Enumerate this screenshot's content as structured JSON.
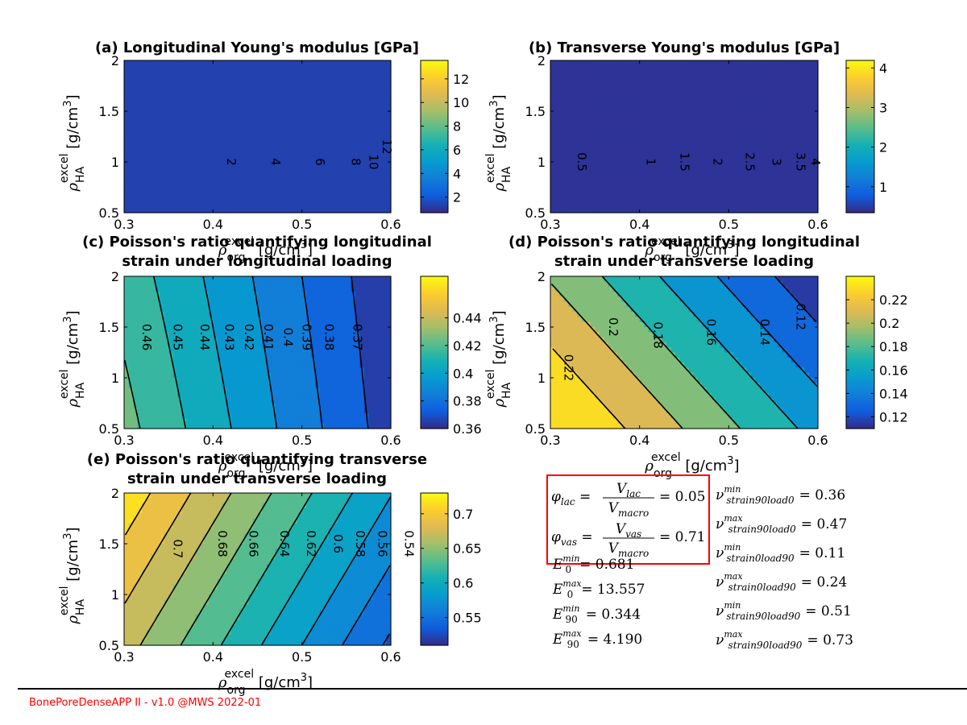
{
  "footer": {
    "text": "BonePoreDenseAPP II - v1.0 @MWS 2022-01"
  },
  "chart_data": [
    {
      "id": "a",
      "type": "heatmap",
      "title": "(a) Longitudinal Young's modulus [GPa]",
      "xlabel": "ρ_org^excel [g/cm^3]",
      "ylabel": "ρ_HA^excel [g/cm^3]",
      "xlim": [
        0.3,
        0.6
      ],
      "ylim": [
        0.5,
        2
      ],
      "xticks": [
        "0.3",
        "0.4",
        "0.5",
        "0.6"
      ],
      "yticks": [
        "0.5",
        "1",
        "1.5",
        "2"
      ],
      "field": {
        "base": 14.6,
        "cx": -42,
        "cy": -3.0,
        "cxy": 0.6
      },
      "clim": [
        0.681,
        13.557
      ],
      "cbar_ticks": [
        2,
        4,
        6,
        8,
        10,
        12
      ],
      "contour_levels": [
        2,
        4,
        6,
        8,
        10,
        12
      ],
      "level_labels": [
        [
          "2",
          0.42,
          1
        ],
        [
          "4",
          0.47,
          1
        ],
        [
          "6",
          0.52,
          1
        ],
        [
          "8",
          0.56,
          1
        ],
        [
          "10",
          0.58,
          1
        ],
        [
          "12",
          0.595,
          1.15
        ]
      ]
    },
    {
      "id": "b",
      "type": "heatmap",
      "title": "(b) Transverse Young's modulus [GPa]",
      "xlabel": "ρ_org^excel [g/cm^3]",
      "ylabel": "ρ_HA^excel [g/cm^3]",
      "xlim": [
        0.3,
        0.6
      ],
      "ylim": [
        0.5,
        2
      ],
      "xticks": [
        "0.3",
        "0.4",
        "0.5",
        "0.6"
      ],
      "yticks": [
        "0.5",
        "1",
        "1.5",
        "2"
      ],
      "field": {
        "base": 4.45,
        "cx": -13.5,
        "cy": 0.05,
        "cxy": 0
      },
      "clim": [
        0.344,
        4.19
      ],
      "cbar_ticks": [
        1,
        2,
        3,
        4
      ],
      "contour_levels": [
        0.5,
        1,
        1.5,
        2,
        2.5,
        3,
        3.5,
        4
      ],
      "level_labels": [
        [
          "0.5",
          0.335,
          1
        ],
        [
          "1",
          0.412,
          1
        ],
        [
          "1.5",
          0.45,
          1
        ],
        [
          "2",
          0.487,
          1
        ],
        [
          "2.5",
          0.523,
          1
        ],
        [
          "3",
          0.553,
          1
        ],
        [
          "3.5",
          0.58,
          1
        ],
        [
          "4",
          0.597,
          1
        ]
      ]
    },
    {
      "id": "c",
      "type": "heatmap",
      "title": "(c) Poisson's ratio quantifying longitudinal\nstrain under longitudinal loading",
      "xlabel": "ρ_org^excel [g/cm^3]",
      "ylabel": "ρ_HA^excel [g/cm^3]",
      "xlim": [
        0.3,
        0.6
      ],
      "ylim": [
        0.5,
        2
      ],
      "xticks": [
        "0.3",
        "0.4",
        "0.5",
        "0.6"
      ],
      "yticks": [
        "0.5",
        "1",
        "1.5",
        "2"
      ],
      "field": {
        "base": 0.486,
        "cx": -0.2,
        "cy": -0.008,
        "cxy": 0.01
      },
      "clim": [
        0.36,
        0.47
      ],
      "cbar_ticks": [
        0.36,
        0.38,
        0.4,
        0.42,
        0.44
      ],
      "cbar_tick_labels": [
        "0.36",
        "0.38",
        "0.4",
        "0.42",
        "0.44"
      ],
      "contour_levels": [
        0.37,
        0.38,
        0.39,
        0.4,
        0.41,
        0.42,
        0.43,
        0.44,
        0.45,
        0.46
      ],
      "level_labels": [
        [
          "0.46",
          0.325,
          1.4
        ],
        [
          "0.45",
          0.36,
          1.4
        ],
        [
          "0.44",
          0.39,
          1.4
        ],
        [
          "0.43",
          0.418,
          1.4
        ],
        [
          "0.42",
          0.44,
          1.4
        ],
        [
          "0.41",
          0.462,
          1.4
        ],
        [
          "0.4",
          0.484,
          1.4
        ],
        [
          "0.39",
          0.505,
          1.4
        ],
        [
          "0.38",
          0.53,
          1.4
        ],
        [
          "0.37",
          0.562,
          1.4
        ]
      ]
    },
    {
      "id": "d",
      "type": "heatmap",
      "title": "(d) Poisson's ratio quantifying longitudinal\nstrain under transverse loading",
      "xlabel": "ρ_org^excel [g/cm^3]",
      "ylabel": "ρ_HA^excel [g/cm^3]",
      "xlim": [
        0.3,
        0.6
      ],
      "ylim": [
        0.5,
        2
      ],
      "xticks": [
        "0.3",
        "0.4",
        "0.5",
        "0.6"
      ],
      "yticks": [
        "0.5",
        "1",
        "1.5",
        "2"
      ],
      "field": {
        "base": 0.355,
        "cx": -0.31,
        "cy": -0.032,
        "cxy": 0
      },
      "clim": [
        0.11,
        0.24
      ],
      "cbar_ticks": [
        0.12,
        0.14,
        0.16,
        0.18,
        0.2,
        0.22
      ],
      "cbar_tick_labels": [
        "0.12",
        "0.14",
        "0.16",
        "0.18",
        "0.2",
        "0.22"
      ],
      "contour_levels": [
        0.12,
        0.14,
        0.16,
        0.18,
        0.2,
        0.22
      ],
      "level_labels": [
        [
          "0.22",
          0.32,
          1.1
        ],
        [
          "0.2",
          0.37,
          1.5
        ],
        [
          "0.18",
          0.42,
          1.42
        ],
        [
          "0.16",
          0.48,
          1.45
        ],
        [
          "0.14",
          0.54,
          1.45
        ],
        [
          "0.12",
          0.58,
          1.6
        ]
      ]
    },
    {
      "id": "e",
      "type": "heatmap",
      "title": "(e) Poisson's ratio quantifying transverse\nstrain under transverse loading",
      "xlabel": "ρ_org^excel [g/cm^3]",
      "ylabel": "ρ_HA^excel [g/cm^3]",
      "xlim": [
        0.3,
        0.6
      ],
      "ylim": [
        0.5,
        2
      ],
      "xticks": [
        "0.3",
        "0.4",
        "0.5",
        "0.6"
      ],
      "yticks": [
        "0.5",
        "1",
        "1.5",
        "2"
      ],
      "field": {
        "base": 0.785,
        "cx": -0.44,
        "cy": 0.03,
        "cxy": 0
      },
      "clim": [
        0.51,
        0.73
      ],
      "cbar_ticks": [
        0.55,
        0.6,
        0.65,
        0.7
      ],
      "cbar_tick_labels": [
        "0.55",
        "0.6",
        "0.65",
        "0.7"
      ],
      "contour_levels": [
        0.54,
        0.56,
        0.58,
        0.6,
        0.62,
        0.64,
        0.66,
        0.68,
        0.7
      ],
      "level_labels": [
        [
          "0.7",
          0.36,
          1.45
        ],
        [
          "0.68",
          0.41,
          1.5
        ],
        [
          "0.66",
          0.445,
          1.5
        ],
        [
          "0.64",
          0.48,
          1.5
        ],
        [
          "0.62",
          0.51,
          1.5
        ],
        [
          "0.6",
          0.54,
          1.5
        ],
        [
          "0.58",
          0.565,
          1.5
        ],
        [
          "0.56",
          0.59,
          1.5
        ],
        [
          "0.54",
          0.62,
          1.5
        ]
      ]
    }
  ],
  "summary": {
    "porosity": [
      {
        "sym": "φ",
        "sub": "lac",
        "num": "V",
        "num_sub": "lac",
        "den": "V",
        "den_sub": "macro",
        "value": "0.05"
      },
      {
        "sym": "φ",
        "sub": "vas",
        "num": "V",
        "num_sub": "vas",
        "den": "V",
        "den_sub": "macro",
        "value": "0.71"
      }
    ],
    "moduli": [
      {
        "sym": "E",
        "sub": "0",
        "sup": "min",
        "value": "0.681"
      },
      {
        "sym": "E",
        "sub": "0",
        "sup": "max",
        "value": "13.557"
      },
      {
        "sym": "E",
        "sub": "90",
        "sup": "min",
        "value": "0.344"
      },
      {
        "sym": "E",
        "sub": "90",
        "sup": "max",
        "value": "4.190"
      }
    ],
    "poisson": [
      {
        "sym": "ν",
        "sub": "strain90load0",
        "sup": "min",
        "value": "0.36"
      },
      {
        "sym": "ν",
        "sub": "strain90load0",
        "sup": "max",
        "value": "0.47"
      },
      {
        "sym": "ν",
        "sub": "strain0load90",
        "sup": "min",
        "value": "0.11"
      },
      {
        "sym": "ν",
        "sub": "strain0load90",
        "sup": "max",
        "value": "0.24"
      },
      {
        "sym": "ν",
        "sub": "strain90load90",
        "sup": "min",
        "value": "0.51"
      },
      {
        "sym": "ν",
        "sub": "strain90load90",
        "sup": "max",
        "value": "0.73"
      }
    ]
  },
  "colors": {
    "highlight_box": "#ff0000",
    "axis": "#000000",
    "background": "#ffffff"
  }
}
